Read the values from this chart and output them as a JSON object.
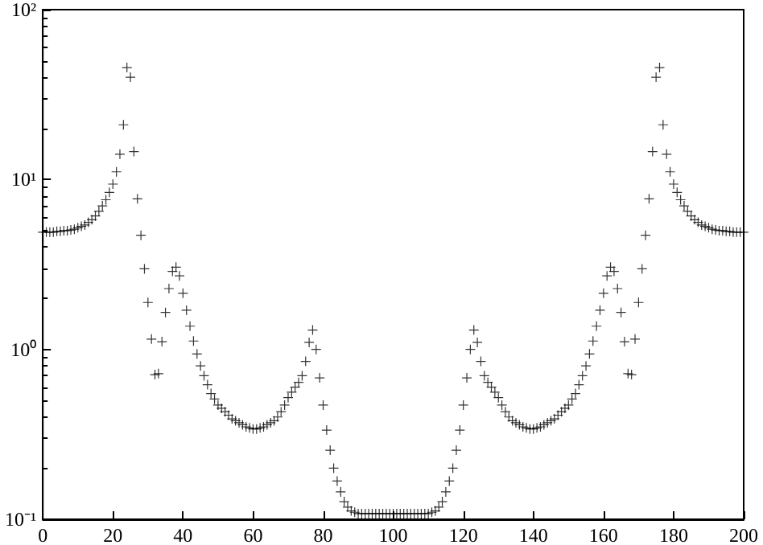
{
  "chart_data": {
    "type": "scatter",
    "marker": "cross",
    "grid": false,
    "log": "y",
    "xlim": [
      0,
      200
    ],
    "xticks": [
      0,
      20,
      40,
      60,
      80,
      100,
      120,
      140,
      160,
      180,
      200
    ],
    "ylim": [
      0.1,
      100
    ],
    "yticks": [
      {
        "value": 0.1,
        "label": "10⁻¹"
      },
      {
        "value": 1,
        "label": "10⁰"
      },
      {
        "value": 10,
        "label": "10¹"
      },
      {
        "value": 100,
        "label": "10²"
      }
    ],
    "x": [
      0,
      1,
      2,
      3,
      4,
      5,
      6,
      7,
      8,
      9,
      10,
      11,
      12,
      13,
      14,
      15,
      16,
      17,
      18,
      19,
      20,
      21,
      22,
      23,
      24,
      25,
      26,
      27,
      28,
      29,
      30,
      31,
      32,
      33,
      34,
      35,
      36,
      37,
      38,
      39,
      40,
      41,
      42,
      43,
      44,
      45,
      46,
      47,
      48,
      49,
      50,
      51,
      52,
      53,
      54,
      55,
      56,
      57,
      58,
      59,
      60,
      61,
      62,
      63,
      64,
      65,
      66,
      67,
      68,
      69,
      70,
      71,
      72,
      73,
      74,
      75,
      76,
      77,
      78,
      79,
      80,
      81,
      82,
      83,
      84,
      85,
      86,
      87,
      88,
      89,
      90,
      91,
      92,
      93,
      94,
      95,
      96,
      97,
      98,
      99,
      100,
      101,
      102,
      103,
      104,
      105,
      106,
      107,
      108,
      109,
      110,
      111,
      112,
      113,
      114,
      115,
      116,
      117,
      118,
      119,
      120,
      121,
      122,
      123,
      124,
      125,
      126,
      127,
      128,
      129,
      130,
      131,
      132,
      133,
      134,
      135,
      136,
      137,
      138,
      139,
      140,
      141,
      142,
      143,
      144,
      145,
      146,
      147,
      148,
      149,
      150,
      151,
      152,
      153,
      154,
      155,
      156,
      157,
      158,
      159,
      160,
      161,
      162,
      163,
      164,
      165,
      166,
      167,
      168,
      169,
      170,
      171,
      172,
      173,
      174,
      175,
      176,
      177,
      178,
      179,
      180,
      181,
      182,
      183,
      184,
      185,
      186,
      187,
      188,
      189,
      190,
      191,
      192,
      193,
      194,
      195,
      196,
      197,
      198,
      199,
      200
    ],
    "series": [
      {
        "color": "#000000",
        "values": [
          4.9,
          4.9,
          4.9,
          4.9,
          4.95,
          4.95,
          5.0,
          5.0,
          5.05,
          5.1,
          5.2,
          5.3,
          5.4,
          5.6,
          5.8,
          6.1,
          6.5,
          7.0,
          7.6,
          8.4,
          9.4,
          11.1,
          14.1,
          21,
          45.6,
          40,
          14.6,
          7.7,
          4.7,
          2.98,
          1.89,
          1.15,
          0.71,
          0.72,
          1.11,
          1.65,
          2.28,
          2.88,
          3.05,
          2.71,
          2.14,
          1.7,
          1.37,
          1.12,
          0.94,
          0.8,
          0.7,
          0.62,
          0.55,
          0.51,
          0.47,
          0.45,
          0.43,
          0.41,
          0.39,
          0.38,
          0.37,
          0.36,
          0.35,
          0.345,
          0.34,
          0.34,
          0.345,
          0.35,
          0.36,
          0.37,
          0.38,
          0.4,
          0.43,
          0.47,
          0.52,
          0.56,
          0.6,
          0.64,
          0.7,
          0.85,
          1.1,
          1.3,
          1.0,
          0.68,
          0.47,
          0.335,
          0.255,
          0.2,
          0.168,
          0.145,
          0.127,
          0.118,
          0.112,
          0.11,
          0.108,
          0.108,
          0.108,
          0.108,
          0.108,
          0.108,
          0.108,
          0.108,
          0.108,
          0.108,
          0.108,
          0.108,
          0.108,
          0.108,
          0.108,
          0.108,
          0.108,
          0.108,
          0.108,
          0.108,
          0.108,
          0.11,
          0.112,
          0.118,
          0.127,
          0.145,
          0.168,
          0.2,
          0.255,
          0.335,
          0.47,
          0.68,
          1.0,
          1.3,
          1.1,
          0.85,
          0.7,
          0.64,
          0.6,
          0.56,
          0.52,
          0.47,
          0.43,
          0.4,
          0.38,
          0.37,
          0.36,
          0.35,
          0.345,
          0.34,
          0.34,
          0.345,
          0.35,
          0.36,
          0.37,
          0.38,
          0.39,
          0.41,
          0.43,
          0.45,
          0.47,
          0.51,
          0.55,
          0.62,
          0.7,
          0.8,
          0.94,
          1.12,
          1.37,
          1.7,
          2.14,
          2.71,
          3.05,
          2.88,
          2.28,
          1.65,
          1.11,
          0.72,
          0.71,
          1.15,
          1.89,
          2.98,
          4.7,
          7.7,
          14.6,
          40,
          45.6,
          21,
          14.1,
          11.1,
          9.4,
          8.4,
          7.6,
          7.0,
          6.5,
          6.1,
          5.8,
          5.6,
          5.4,
          5.3,
          5.2,
          5.1,
          5.05,
          5.0,
          5.0,
          4.95,
          4.95,
          4.9,
          4.9,
          4.9,
          4.9
        ]
      }
    ]
  }
}
